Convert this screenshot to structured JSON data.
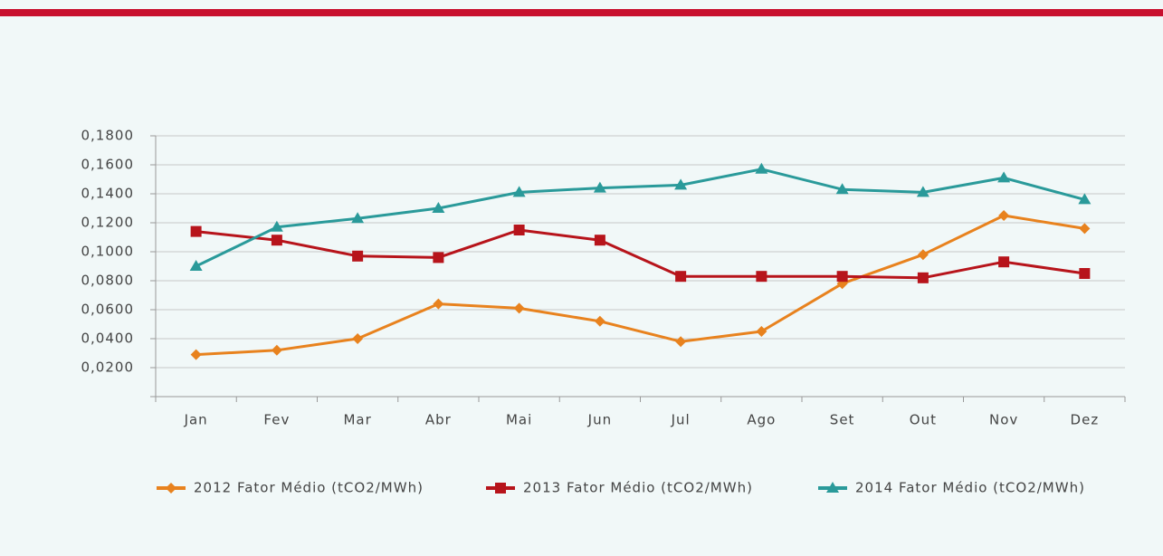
{
  "chart_data": {
    "type": "line",
    "categories": [
      "Jan",
      "Fev",
      "Mar",
      "Abr",
      "Mai",
      "Jun",
      "Jul",
      "Ago",
      "Set",
      "Out",
      "Nov",
      "Dez"
    ],
    "series": [
      {
        "name": "2012 Fator Médio (tCO2/MWh)",
        "color": "#e8821e",
        "marker": "diamond",
        "values": [
          0.029,
          0.032,
          0.04,
          0.064,
          0.061,
          0.052,
          0.038,
          0.045,
          0.078,
          0.098,
          0.125,
          0.116
        ]
      },
      {
        "name": "2013 Fator Médio (tCO2/MWh)",
        "color": "#b7141b",
        "marker": "square",
        "values": [
          0.114,
          0.108,
          0.097,
          0.096,
          0.115,
          0.108,
          0.083,
          0.083,
          0.083,
          0.082,
          0.093,
          0.085
        ]
      },
      {
        "name": "2014 Fator Médio (tCO2/MWh)",
        "color": "#2a9a9a",
        "marker": "triangle",
        "values": [
          0.09,
          0.117,
          0.123,
          0.13,
          0.141,
          0.144,
          0.146,
          0.157,
          0.143,
          0.141,
          0.151,
          0.136
        ]
      }
    ],
    "ylim": [
      0,
      0.18
    ],
    "yticks": [
      {
        "value": 0.02,
        "label": "0,0200"
      },
      {
        "value": 0.04,
        "label": "0,0400"
      },
      {
        "value": 0.06,
        "label": "0,0600"
      },
      {
        "value": 0.08,
        "label": "0,0800"
      },
      {
        "value": 0.1,
        "label": "0,1000"
      },
      {
        "value": 0.12,
        "label": "0,1200"
      },
      {
        "value": 0.14,
        "label": "0,1400"
      },
      {
        "value": 0.16,
        "label": "0,1600"
      },
      {
        "value": 0.18,
        "label": "0,1800"
      }
    ],
    "grid": true,
    "legend": "bottom"
  }
}
